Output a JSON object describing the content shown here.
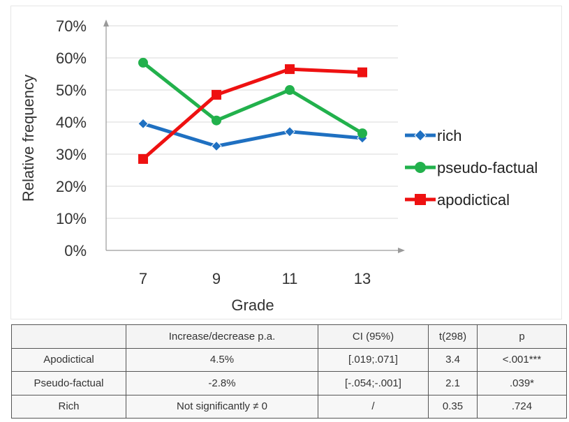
{
  "chart_data": {
    "type": "line",
    "title": "",
    "xlabel": "Grade",
    "ylabel": "Relative frequency",
    "categories": [
      "7",
      "9",
      "11",
      "13"
    ],
    "yticks": [
      "0%",
      "10%",
      "20%",
      "30%",
      "40%",
      "50%",
      "60%",
      "70%"
    ],
    "ylim": [
      0,
      0.7
    ],
    "grid": "horizontal",
    "legend": "right",
    "series": [
      {
        "name": "rich",
        "values": [
          0.395,
          0.325,
          0.37,
          0.35
        ],
        "color": "#1f70c1",
        "marker": "diamond"
      },
      {
        "name": "pseudo-factual",
        "values": [
          0.585,
          0.405,
          0.5,
          0.365
        ],
        "color": "#22b14c",
        "marker": "circle"
      },
      {
        "name": "apodictical",
        "values": [
          0.285,
          0.485,
          0.565,
          0.555
        ],
        "color": "#ee1111",
        "marker": "square"
      }
    ]
  },
  "table": {
    "headers": [
      "",
      "Increase/decrease p.a.",
      "CI (95%)",
      "t(298)",
      "p"
    ],
    "rows": [
      [
        "Apodictical",
        "4.5%",
        "[.019;.071]",
        "3.4",
        "<.001***"
      ],
      [
        "Pseudo-factual",
        "-2.8%",
        "[-.054;-.001]",
        "2.1",
        ".039*"
      ],
      [
        "Rich",
        "Not significantly ≠ 0",
        "/",
        "0.35",
        ".724"
      ]
    ]
  }
}
